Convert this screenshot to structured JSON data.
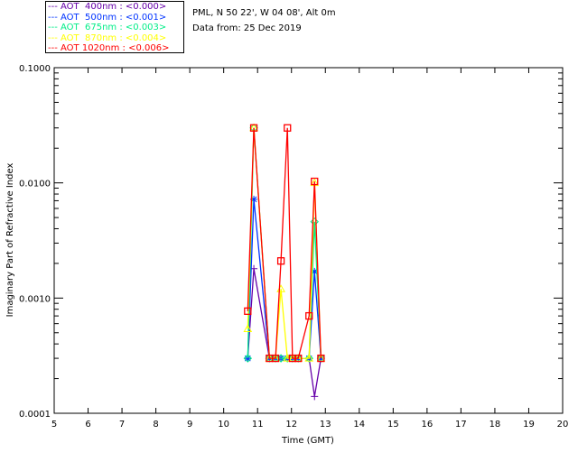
{
  "legend": [
    {
      "label": "--- AOT  400nm : <0.000>",
      "color": "#6600aa"
    },
    {
      "label": "--- AOT  500nm : <0.001>",
      "color": "#0033ff"
    },
    {
      "label": "--- AOT  675nm : <0.003>",
      "color": "#00ee88"
    },
    {
      "label": "--- AOT  870nm : <0.004>",
      "color": "#ffff00"
    },
    {
      "label": "--- AOT 1020nm : <0.006>",
      "color": "#ff0000"
    }
  ],
  "info": {
    "location": "PML, N 50 22', W 04 08', Alt 0m",
    "date": "Data from: 25 Dec 2019"
  },
  "chart_data": {
    "type": "line",
    "xlabel": "Time (GMT)",
    "ylabel": "Imaginary Part of Refractive Index",
    "xlim": [
      5,
      20
    ],
    "ylim": [
      0.0001,
      0.1
    ],
    "yscale": "log",
    "xticks": [
      "5",
      "6",
      "7",
      "8",
      "9",
      "10",
      "11",
      "12",
      "13",
      "14",
      "15",
      "16",
      "17",
      "18",
      "19",
      "20"
    ],
    "yticks": [
      {
        "v": 0.0001,
        "label": "0.0001"
      },
      {
        "v": 0.001,
        "label": "0.0010"
      },
      {
        "v": 0.01,
        "label": "0.0100"
      },
      {
        "v": 0.1,
        "label": "0.1000"
      }
    ],
    "x": [
      10.71,
      10.89,
      11.35,
      11.53,
      11.69,
      11.88,
      12.03,
      12.2,
      12.52,
      12.68,
      12.87
    ],
    "series": [
      {
        "name": "AOT 400nm",
        "color": "#6600aa",
        "marker": "plus",
        "values": [
          0.0003,
          0.0018,
          0.0003,
          0.0003,
          0.0003,
          0.0003,
          0.0003,
          0.0003,
          0.0003,
          0.00014,
          0.0003
        ]
      },
      {
        "name": "AOT 500nm",
        "color": "#0033ff",
        "marker": "asterisk",
        "values": [
          0.0003,
          0.0072,
          0.0003,
          0.0003,
          0.0003,
          0.0003,
          0.0003,
          0.0003,
          0.0003,
          0.0017,
          0.0003
        ]
      },
      {
        "name": "AOT 675nm",
        "color": "#00ee88",
        "marker": "diamond",
        "values": [
          0.0003,
          0.03,
          0.0003,
          0.0003,
          0.0003,
          0.0003,
          0.0003,
          0.0003,
          0.0003,
          0.0046,
          0.0003
        ]
      },
      {
        "name": "AOT 870nm",
        "color": "#ffff00",
        "marker": "triangle",
        "values": [
          0.00054,
          0.03,
          0.0003,
          0.0003,
          0.0012,
          0.0003,
          0.0003,
          0.0003,
          0.0003,
          0.01,
          0.0003
        ]
      },
      {
        "name": "AOT 1020nm",
        "color": "#ff0000",
        "marker": "square",
        "values": [
          0.00077,
          0.03,
          0.0003,
          0.0003,
          0.0021,
          0.03,
          0.0003,
          0.0003,
          0.0007,
          0.0103,
          0.0003
        ]
      }
    ]
  }
}
